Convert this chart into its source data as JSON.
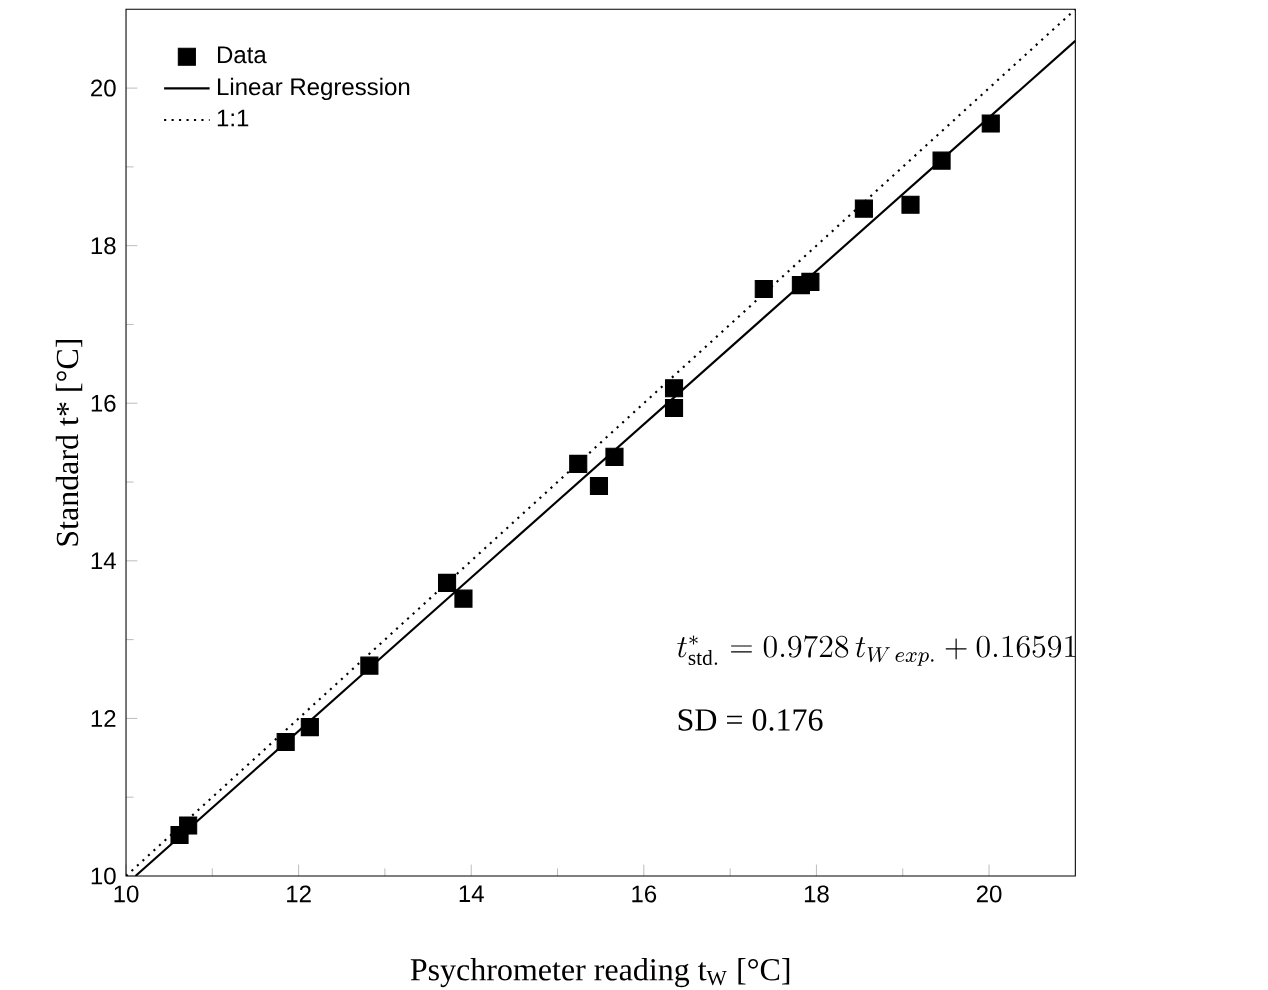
{
  "chart_data": {
    "type": "scatter",
    "xlabel": "Psychrometer reading t$_{W}$ [°C]",
    "ylabel": "Standard t* [°C]",
    "xlim": [
      10,
      21
    ],
    "ylim": [
      10,
      21
    ],
    "xticks": [
      10,
      12,
      14,
      16,
      18,
      20
    ],
    "yticks": [
      10,
      12,
      14,
      16,
      18,
      20
    ],
    "grid": false,
    "legend": "top left",
    "series": [
      {
        "name": "Data",
        "marker": "square",
        "color": "#000000",
        "x": [
          10.62,
          10.72,
          11.85,
          12.13,
          12.82,
          13.72,
          13.91,
          15.24,
          15.48,
          15.66,
          16.35,
          16.35,
          17.39,
          17.82,
          17.93,
          18.55,
          19.09,
          19.45,
          20.02
        ],
        "values": [
          10.52,
          10.64,
          11.7,
          11.89,
          12.67,
          13.72,
          13.52,
          15.23,
          14.95,
          15.32,
          16.19,
          15.94,
          17.45,
          17.5,
          17.54,
          18.47,
          18.52,
          19.08,
          19.55
        ]
      },
      {
        "name": "Linear Regression",
        "type": "line",
        "marker": "none",
        "line_style": "solid",
        "color": "#000000",
        "x": [
          10.11,
          21
        ],
        "values": [
          10.0,
          20.6
        ]
      },
      {
        "name": "1:1",
        "type": "line",
        "marker": "none",
        "line_style": "dotted",
        "color": "#000000",
        "x": [
          10,
          21
        ],
        "values": [
          10,
          21
        ]
      }
    ],
    "annotations": [
      "t^{*}_{\\mathrm{std.}} = 0.9728\\, t_{W\\,exp.} + 0.16591",
      "SD = 0.176"
    ]
  }
}
